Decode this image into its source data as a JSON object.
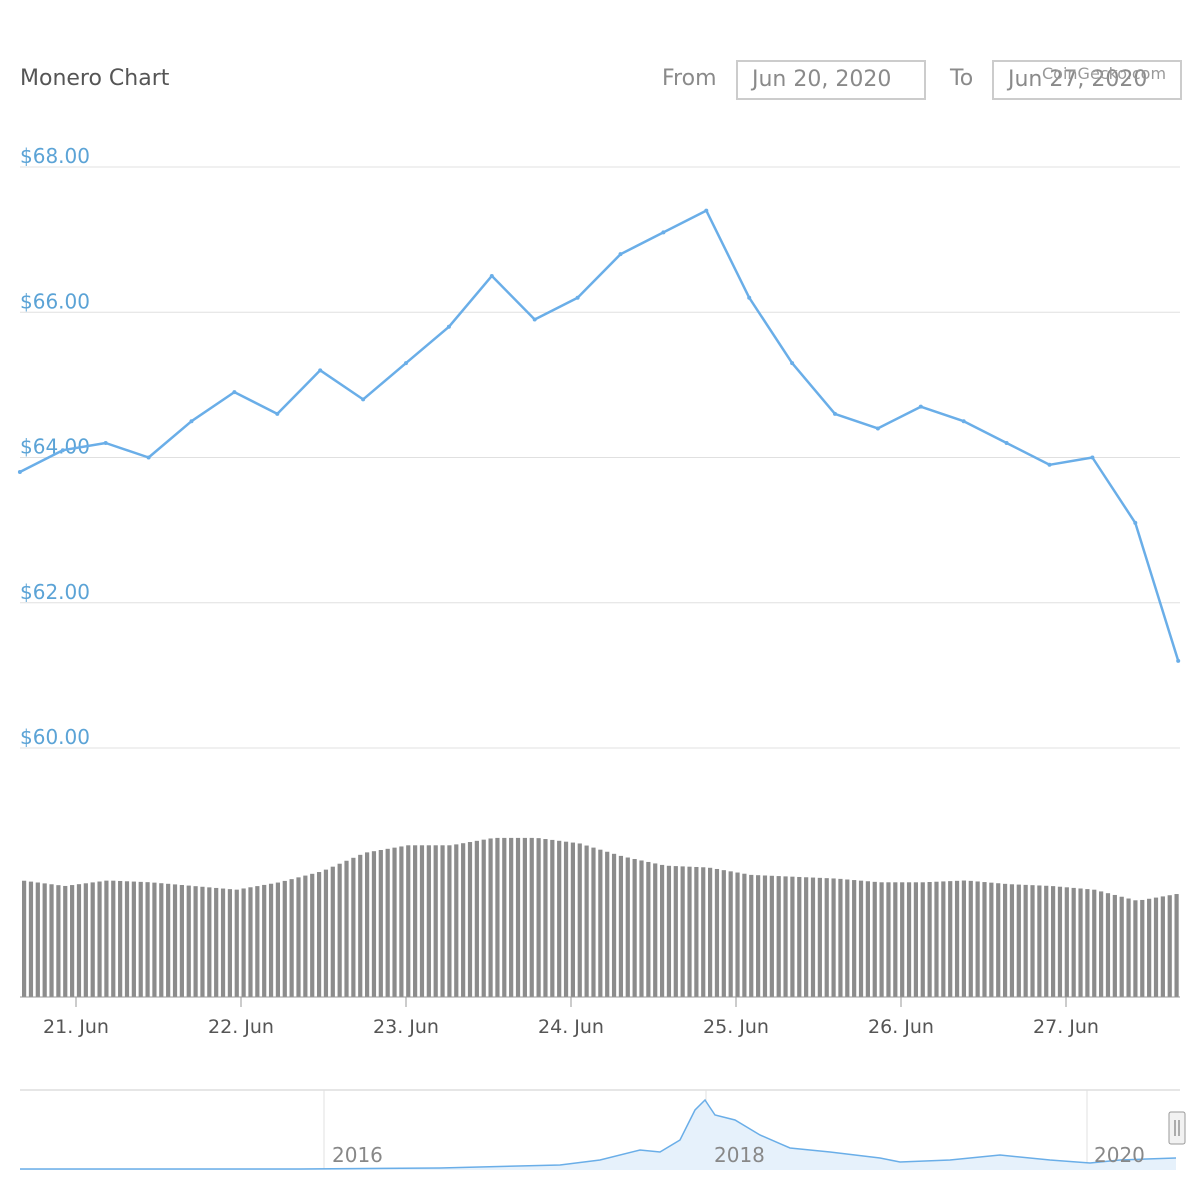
{
  "header": {
    "title": "Monero Chart",
    "from_label": "From",
    "from_value": "Jun 20, 2020",
    "to_label": "To",
    "to_value": "Jun 27, 2020",
    "credits": "CoinGecko.com"
  },
  "colors": {
    "price_line": "#6aaee8",
    "volume_bar": "#8c8c8c",
    "axis_label": "#5ba3d6",
    "grid": "#e0e0e0"
  },
  "chart_data": {
    "type": "line",
    "y_ticks": [
      {
        "value": 68,
        "label": "$68.00"
      },
      {
        "value": 66,
        "label": "$66.00"
      },
      {
        "value": 64,
        "label": "$64.00"
      },
      {
        "value": 62,
        "label": "$62.00"
      },
      {
        "value": 60,
        "label": "$60.00"
      }
    ],
    "ylim": [
      60,
      68
    ],
    "x_ticks": [
      {
        "day": 1,
        "label": "21. Jun"
      },
      {
        "day": 2,
        "label": "22. Jun"
      },
      {
        "day": 3,
        "label": "23. Jun"
      },
      {
        "day": 4,
        "label": "24. Jun"
      },
      {
        "day": 5,
        "label": "25. Jun"
      },
      {
        "day": 6,
        "label": "26. Jun"
      },
      {
        "day": 7,
        "label": "27. Jun"
      }
    ],
    "price_series": {
      "x": [
        0.66,
        0.92,
        1.18,
        1.44,
        1.7,
        1.96,
        2.22,
        2.48,
        2.74,
        3.0,
        3.26,
        3.52,
        3.78,
        4.04,
        4.3,
        4.56,
        4.82,
        5.08,
        5.34,
        5.6,
        5.86,
        6.12,
        6.38,
        6.64,
        6.9,
        7.16,
        7.42,
        7.68
      ],
      "y": [
        63.8,
        64.1,
        64.2,
        64.0,
        64.5,
        64.9,
        64.6,
        65.2,
        64.8,
        65.3,
        65.8,
        66.5,
        65.9,
        66.2,
        66.8,
        67.1,
        67.4,
        66.2,
        65.3,
        64.6,
        64.4,
        64.7,
        64.5,
        64.2,
        63.9,
        64.0,
        63.1,
        61.2
      ]
    },
    "volume_series": {
      "relative_height": [
        0.63,
        0.6,
        0.63,
        0.62,
        0.6,
        0.58,
        0.62,
        0.68,
        0.78,
        0.82,
        0.82,
        0.86,
        0.86,
        0.83,
        0.76,
        0.71,
        0.7,
        0.66,
        0.65,
        0.64,
        0.62,
        0.62,
        0.63,
        0.61,
        0.6,
        0.58,
        0.52,
        0.56
      ]
    }
  },
  "navigator": {
    "year_labels": [
      "2016",
      "2018",
      "2020"
    ]
  }
}
